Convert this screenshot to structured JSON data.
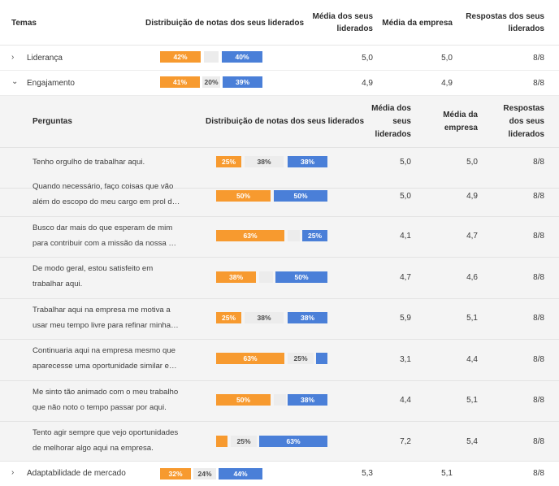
{
  "table": {
    "headers": {
      "temas": "Temas",
      "distribuicao": "Distribuição de notas dos seus liderados",
      "media_lideres_1": "Média dos seus",
      "media_lideres_2": "liderados",
      "media_empresa": "Média da empresa",
      "respostas_1": "Respostas dos seus",
      "respostas_2": "liderados"
    },
    "themes": [
      {
        "name": "Liderança",
        "expanded": false,
        "dist": {
          "orange": "42%",
          "gray": "",
          "blue": "40%"
        },
        "media_lideres": "5,0",
        "media_empresa": "5,0",
        "respostas": "8/8"
      },
      {
        "name": "Engajamento",
        "expanded": true,
        "dist": {
          "orange": "41%",
          "gray": "20%",
          "blue": "39%"
        },
        "media_lideres": "4,9",
        "media_empresa": "4,9",
        "respostas": "8/8"
      },
      {
        "name": "Adaptabilidade de mercado",
        "expanded": false,
        "dist": {
          "orange": "32%",
          "gray": "24%",
          "blue": "44%"
        },
        "media_lideres": "5,3",
        "media_empresa": "5,1",
        "respostas": "8/8"
      }
    ]
  },
  "subtable": {
    "headers": {
      "perguntas": "Perguntas",
      "distribuicao": "Distribuição de notas dos seus liderados",
      "media_lideres_1": "Média dos",
      "media_lideres_2": "seus",
      "media_lideres_3": "liderados",
      "media_empresa_1": "Média da",
      "media_empresa_2": "empresa",
      "respostas_1": "Respostas",
      "respostas_2": "dos seus",
      "respostas_3": "liderados"
    },
    "questions": [
      {
        "line1": "Tenho orgulho de trabalhar aqui.",
        "line2": "",
        "dist": {
          "orange": "25%",
          "gray": "38%",
          "blue": "38%"
        },
        "media_lideres": "5,0",
        "media_empresa": "5,0",
        "respostas": "8/8"
      },
      {
        "line1": "Quando necessário, faço coisas que vão",
        "line2": "além do escopo do meu cargo em prol d…",
        "dist": {
          "orange": "50%",
          "gray": "",
          "blue": "50%"
        },
        "media_lideres": "5,0",
        "media_empresa": "4,9",
        "respostas": "8/8"
      },
      {
        "line1": "Busco dar mais do que esperam de mim",
        "line2": "para contribuir com a missão da nossa …",
        "dist": {
          "orange": "63%",
          "gray": "",
          "blue": "25%"
        },
        "media_lideres": "4,1",
        "media_empresa": "4,7",
        "respostas": "8/8"
      },
      {
        "line1": "De modo geral, estou satisfeito em",
        "line2": "trabalhar aqui.",
        "dist": {
          "orange": "38%",
          "gray": "",
          "blue": "50%"
        },
        "media_lideres": "4,7",
        "media_empresa": "4,6",
        "respostas": "8/8"
      },
      {
        "line1": "Trabalhar aqui na empresa me motiva a",
        "line2": "usar meu tempo livre para refinar minha…",
        "dist": {
          "orange": "25%",
          "gray": "38%",
          "blue": "38%"
        },
        "media_lideres": "5,9",
        "media_empresa": "5,1",
        "respostas": "8/8"
      },
      {
        "line1": "Continuaria aqui na empresa mesmo que",
        "line2": "aparecesse uma oportunidade similar e…",
        "dist": {
          "orange": "63%",
          "gray": "25%",
          "blue": ""
        },
        "media_lideres": "3,1",
        "media_empresa": "4,4",
        "respostas": "8/8"
      },
      {
        "line1": "Me sinto tão animado com o meu trabalho",
        "line2": "que não noto o tempo passar por aqui.",
        "dist": {
          "orange": "50%",
          "gray": "",
          "blue": "38%"
        },
        "media_lideres": "4,4",
        "media_empresa": "5,1",
        "respostas": "8/8"
      },
      {
        "line1": "Tento agir sempre que vejo oportunidades",
        "line2": "de melhorar algo aqui na empresa.",
        "dist": {
          "orange": "",
          "gray": "25%",
          "blue": "63%"
        },
        "media_lideres": "7,2",
        "media_empresa": "5,4",
        "respostas": "8/8"
      }
    ]
  },
  "colors": {
    "orange": "#f79a2f",
    "gray": "#ececec",
    "blue": "#4a7fd8"
  },
  "icons": {
    "collapsed": "chevron-right-icon",
    "expanded": "chevron-down-icon"
  }
}
